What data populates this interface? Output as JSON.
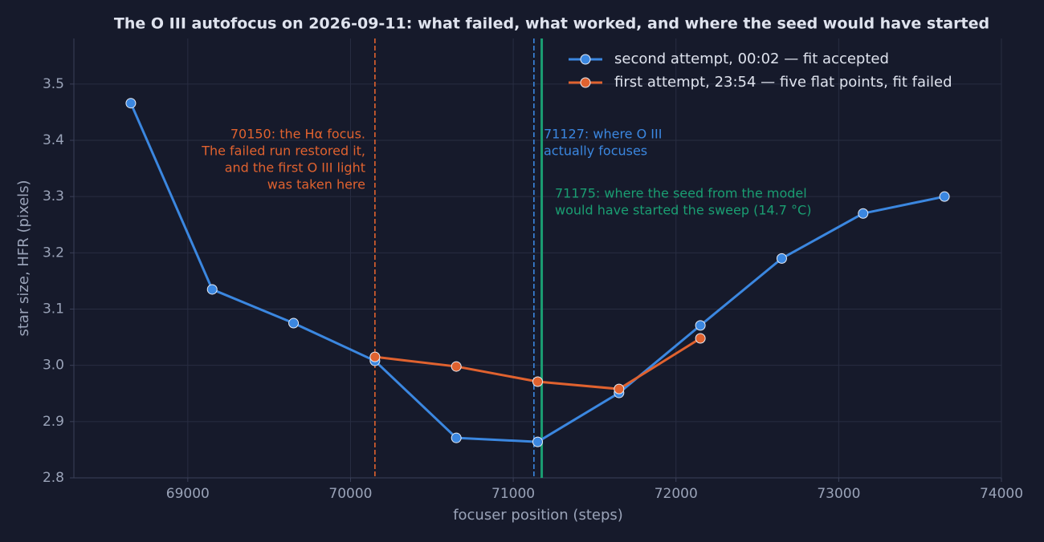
{
  "chart_data": {
    "type": "line",
    "title": "The O III autofocus on 2026-09-11: what failed, what worked, and where the seed would have started",
    "xlabel": "focuser position (steps)",
    "ylabel": "star size, HFR (pixels)",
    "xlim": [
      68300,
      74000
    ],
    "xticks": [
      69000,
      70000,
      71000,
      72000,
      73000,
      74000
    ],
    "ylim": [
      2.8,
      3.581
    ],
    "yticks": [
      2.8,
      2.9,
      {
        "value": 3,
        "label": "3.0"
      },
      3.1,
      3.2,
      3.3,
      3.4,
      3.5
    ],
    "grid": true,
    "legend": "upper right",
    "series": [
      {
        "name": "second attempt, 00:02 — fit accepted",
        "color": "#3b87e0",
        "x": [
          68650,
          69150,
          69650,
          70150,
          70650,
          71150,
          71650,
          72150,
          72650,
          73150,
          73650
        ],
        "values": [
          3.466,
          3.135,
          3.075,
          3.008,
          2.871,
          2.864,
          2.951,
          3.071,
          3.19,
          3.27,
          3.3
        ]
      },
      {
        "name": "first attempt, 23:54 — five flat points, fit failed",
        "color": "#e0622f",
        "x": [
          70150,
          70650,
          71150,
          71650,
          72150
        ],
        "values": [
          3.015,
          2.998,
          2.971,
          2.958,
          3.048
        ]
      }
    ],
    "annotations": [
      {
        "x": 70150,
        "color": "#e0622f",
        "style": "dashed",
        "align": "right",
        "text": [
          "70150: the Hα focus.",
          "The failed run restored it,",
          "and the first O III light",
          "was taken here"
        ]
      },
      {
        "x": 71127,
        "color": "#3b87e0",
        "style": "dashed",
        "align": "left",
        "text": [
          "71127: where O III",
          "actually focuses"
        ]
      },
      {
        "x": 71175,
        "color": "#1a9e72",
        "style": "solid",
        "align": "left",
        "text": [
          "71175: where the seed from the model",
          "would have started the sweep (14.7 °C)"
        ]
      }
    ]
  }
}
